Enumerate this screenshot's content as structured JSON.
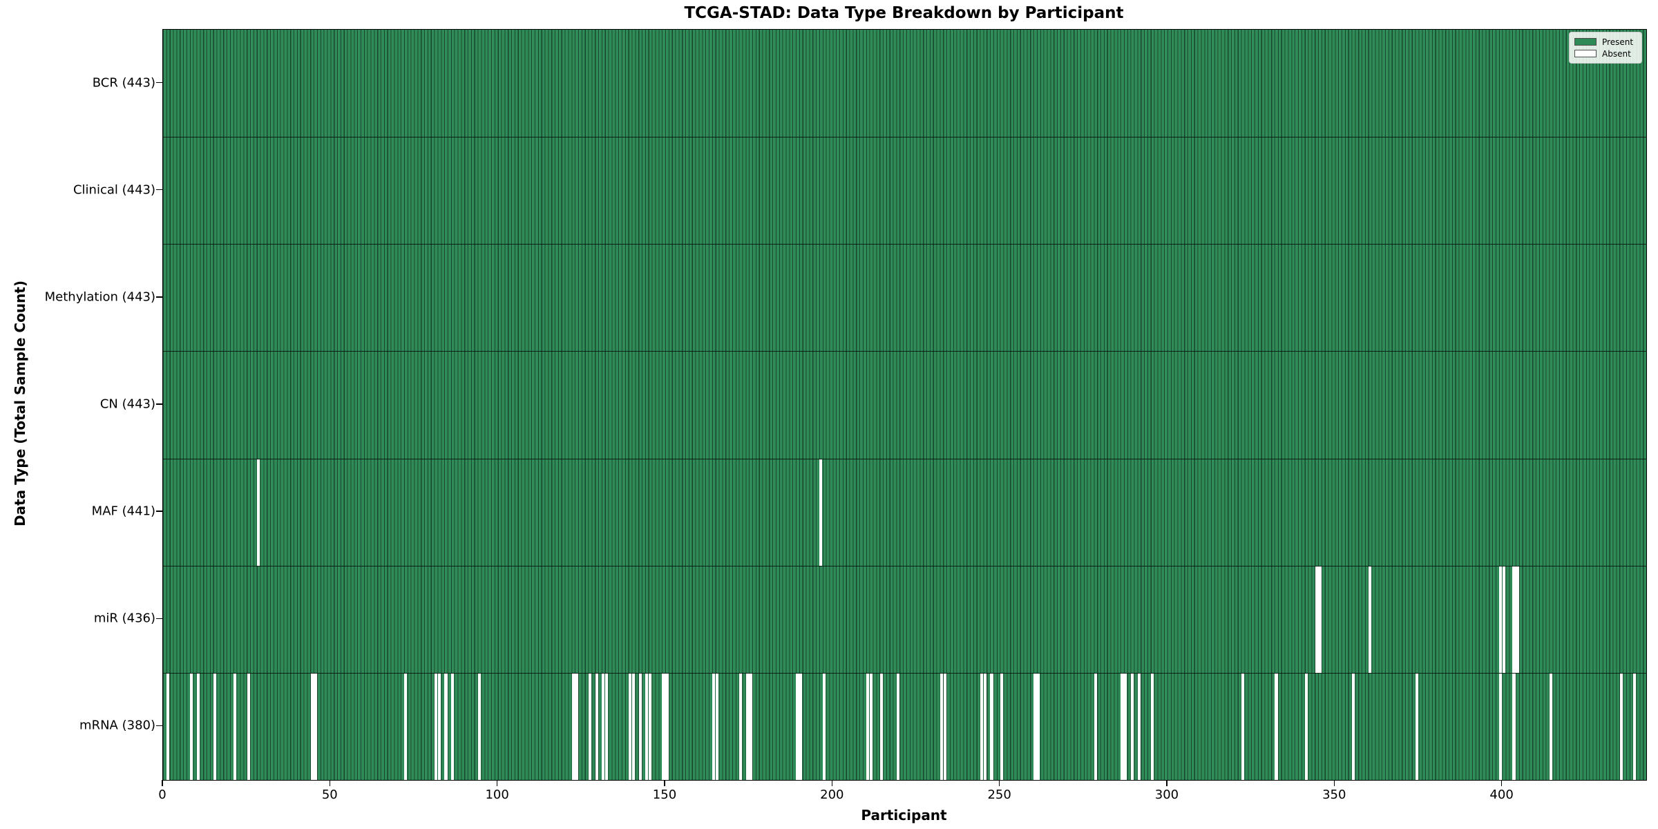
{
  "title": "TCGA-STAD: Data Type Breakdown by Participant",
  "chart_data": {
    "type": "heatmap",
    "subtype": "presence-absence-matrix",
    "title": "TCGA-STAD: Data Type Breakdown by Participant",
    "xlabel": "Participant",
    "ylabel": "Data Type (Total Sample Count)",
    "n_participants": 443,
    "xlim": [
      0,
      443
    ],
    "x_ticks": [
      0,
      50,
      100,
      150,
      200,
      250,
      300,
      350,
      400
    ],
    "grid": false,
    "legend": {
      "position": "upper right",
      "entries": [
        {
          "label": "Present",
          "color": "#2e8b57"
        },
        {
          "label": "Absent",
          "color": "#ffffff"
        }
      ]
    },
    "colors": {
      "present": "#2e8b57",
      "absent": "#ffffff",
      "bar_edge": "#1e5638",
      "row_separator": "#1a1a1a"
    },
    "rows": [
      {
        "name": "BCR",
        "label": "BCR (443)",
        "count": 443,
        "absent_participants": []
      },
      {
        "name": "Clinical",
        "label": "Clinical (443)",
        "count": 443,
        "absent_participants": []
      },
      {
        "name": "Methylation",
        "label": "Methylation (443)",
        "count": 443,
        "absent_participants": []
      },
      {
        "name": "CN",
        "label": "CN (443)",
        "count": 443,
        "absent_participants": []
      },
      {
        "name": "MAF",
        "label": "MAF (441)",
        "count": 441,
        "absent_participants": [
          28,
          196
        ]
      },
      {
        "name": "miR",
        "label": "miR (436)",
        "count": 436,
        "absent_participants": [
          344,
          345,
          360,
          399,
          400,
          403,
          404
        ]
      },
      {
        "name": "mRNA",
        "label": "mRNA (380)",
        "count": 380,
        "absent_participants": [
          1,
          8,
          10,
          15,
          21,
          25,
          44,
          45,
          72,
          81,
          82,
          84,
          86,
          94,
          122,
          123,
          127,
          129,
          131,
          132,
          139,
          140,
          142,
          144,
          145,
          149,
          150,
          164,
          165,
          172,
          174,
          175,
          189,
          190,
          197,
          210,
          211,
          214,
          219,
          232,
          233,
          244,
          245,
          247,
          250,
          260,
          261,
          278,
          286,
          287,
          289,
          291,
          295,
          322,
          332,
          341,
          355,
          374,
          399,
          403,
          414,
          435,
          439
        ]
      }
    ]
  }
}
